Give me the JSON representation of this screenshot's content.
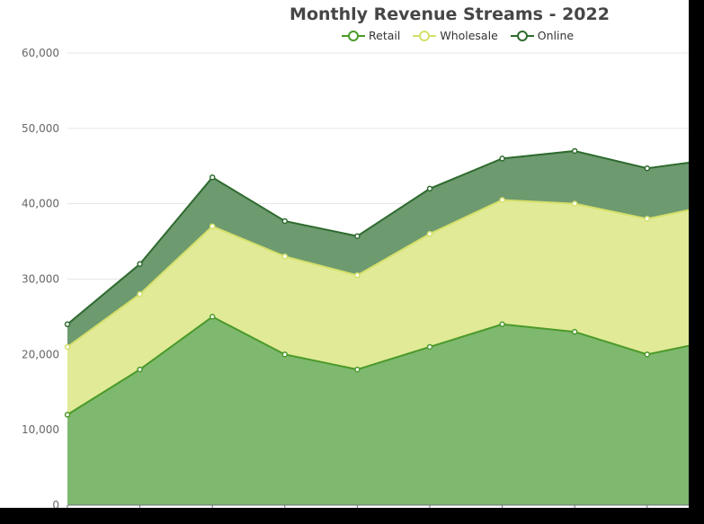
{
  "chart_data": {
    "type": "area",
    "stacked": true,
    "title": "Monthly Revenue Streams - 2022",
    "xlabel": "",
    "ylabel": "",
    "ylim": [
      0,
      60000
    ],
    "y_ticks": [
      "0",
      "10,000",
      "20,000",
      "30,000",
      "40,000",
      "50,000",
      "60,000"
    ],
    "y_tick_values": [
      0,
      10000,
      20000,
      30000,
      40000,
      50000,
      60000
    ],
    "grid": true,
    "legend_position": "top-center",
    "x_count": 10,
    "series": [
      {
        "name": "Retail",
        "line_color": "#4a9a2a",
        "fill_color": "#7fb86f",
        "values": [
          12000,
          18000,
          25000,
          20000,
          18000,
          21000,
          24000,
          23000,
          20000,
          22000
        ]
      },
      {
        "name": "Wholesale",
        "line_color": "#d4e06a",
        "fill_color": "#e1ea96",
        "values": [
          9000,
          10000,
          12000,
          13000,
          12500,
          15000,
          16500,
          17000,
          18000,
          18000
        ]
      },
      {
        "name": "Online",
        "line_color": "#2e6b2e",
        "fill_color": "#6e9a70",
        "values": [
          3000,
          4000,
          6500,
          4700,
          5200,
          6000,
          5500,
          7000,
          6700,
          6000
        ]
      }
    ]
  }
}
